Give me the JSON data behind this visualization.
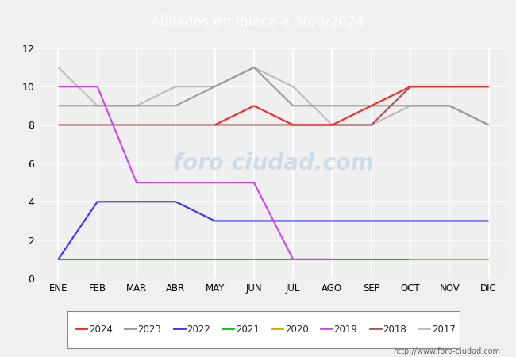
{
  "title": "Afiliados en Ibieca a 30/9/2024",
  "header_bg": "#4d79c7",
  "months": [
    "ENE",
    "FEB",
    "MAR",
    "ABR",
    "MAY",
    "JUN",
    "JUL",
    "AGO",
    "SEP",
    "OCT",
    "NOV",
    "DIC"
  ],
  "ylim": [
    0,
    12
  ],
  "yticks": [
    0,
    2,
    4,
    6,
    8,
    10,
    12
  ],
  "series": {
    "2024": {
      "color": "#ff2222",
      "data": [
        null,
        null,
        null,
        null,
        8,
        9,
        8,
        8,
        9,
        10,
        10,
        10
      ]
    },
    "2023": {
      "color": "#999999",
      "data": [
        9,
        9,
        9,
        9,
        10,
        11,
        9,
        9,
        9,
        9,
        9,
        8
      ]
    },
    "2022": {
      "color": "#3333ff",
      "data": [
        1,
        4,
        4,
        4,
        3,
        3,
        3,
        3,
        3,
        3,
        3,
        3
      ]
    },
    "2021": {
      "color": "#00cc00",
      "data": [
        1,
        1,
        1,
        1,
        1,
        1,
        1,
        1,
        1,
        1,
        1,
        1
      ]
    },
    "2020": {
      "color": "#ddaa00",
      "data": [
        null,
        null,
        null,
        null,
        null,
        null,
        null,
        null,
        null,
        1,
        1,
        1
      ]
    },
    "2019": {
      "color": "#cc44ee",
      "data": [
        10,
        10,
        5,
        5,
        5,
        5,
        1,
        1,
        null,
        null,
        null,
        null
      ]
    },
    "2018": {
      "color": "#aa5555",
      "data": [
        8,
        8,
        8,
        8,
        8,
        8,
        8,
        8,
        8,
        10,
        10,
        10
      ]
    },
    "2017": {
      "color": "#bbbbbb",
      "data": [
        11,
        9,
        9,
        10,
        10,
        11,
        10,
        8,
        8,
        9,
        9,
        8
      ]
    }
  },
  "watermark_text": "foro ciudad.com",
  "watermark_color": "#c8d8e8",
  "url": "http://www.foro-ciudad.com",
  "plot_bg": "#efefef",
  "fig_bg": "#f0f0f0",
  "grid_color": "#ffffff",
  "legend_years": [
    "2024",
    "2023",
    "2022",
    "2021",
    "2020",
    "2019",
    "2018",
    "2017"
  ]
}
